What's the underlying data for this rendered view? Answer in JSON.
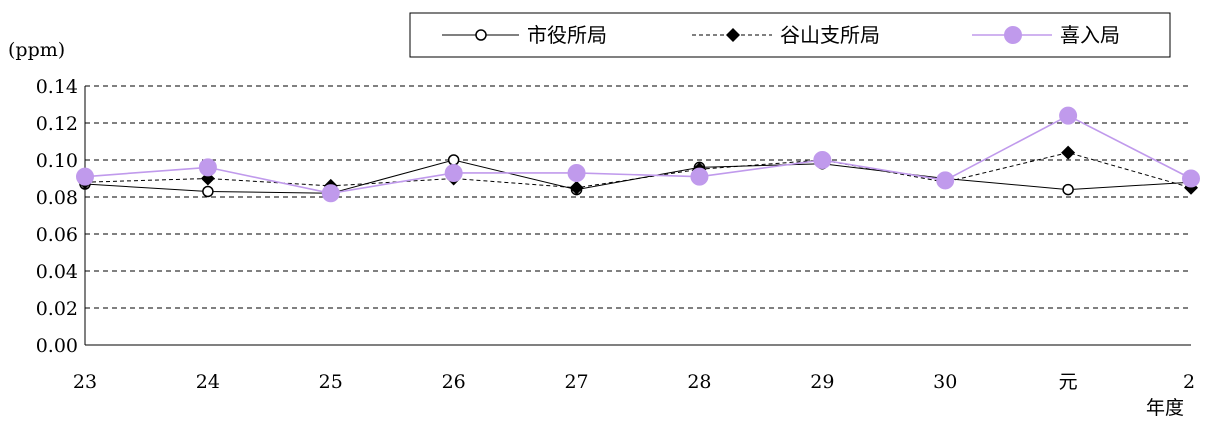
{
  "chart_data": {
    "type": "line",
    "title": "",
    "ylabel": "(ppm)",
    "xlabel": "年度",
    "categories": [
      "23",
      "24",
      "25",
      "26",
      "27",
      "28",
      "29",
      "30",
      "元",
      "2"
    ],
    "ylim": [
      0,
      0.14
    ],
    "yticks": [
      "0.00",
      "0.02",
      "0.04",
      "0.06",
      "0.08",
      "0.10",
      "0.12",
      "0.14"
    ],
    "grid": "horizontal dashed",
    "legend_position": "top-right",
    "series": [
      {
        "name": "市役所局",
        "style": "solid",
        "marker": "open-circle",
        "color": "#000000",
        "values": [
          0.087,
          0.083,
          0.082,
          0.1,
          0.084,
          0.096,
          0.098,
          0.09,
          0.084,
          0.088
        ]
      },
      {
        "name": "谷山支所局",
        "style": "dashed",
        "marker": "filled-diamond",
        "color": "#000000",
        "values": [
          0.088,
          0.09,
          0.086,
          0.09,
          0.085,
          0.095,
          0.1,
          0.088,
          0.104,
          0.085
        ]
      },
      {
        "name": "喜入局",
        "style": "solid",
        "marker": "filled-circle",
        "color": "#c09aec",
        "values": [
          0.091,
          0.096,
          0.082,
          0.093,
          0.093,
          0.091,
          0.1,
          0.089,
          0.124,
          0.09
        ]
      }
    ]
  }
}
